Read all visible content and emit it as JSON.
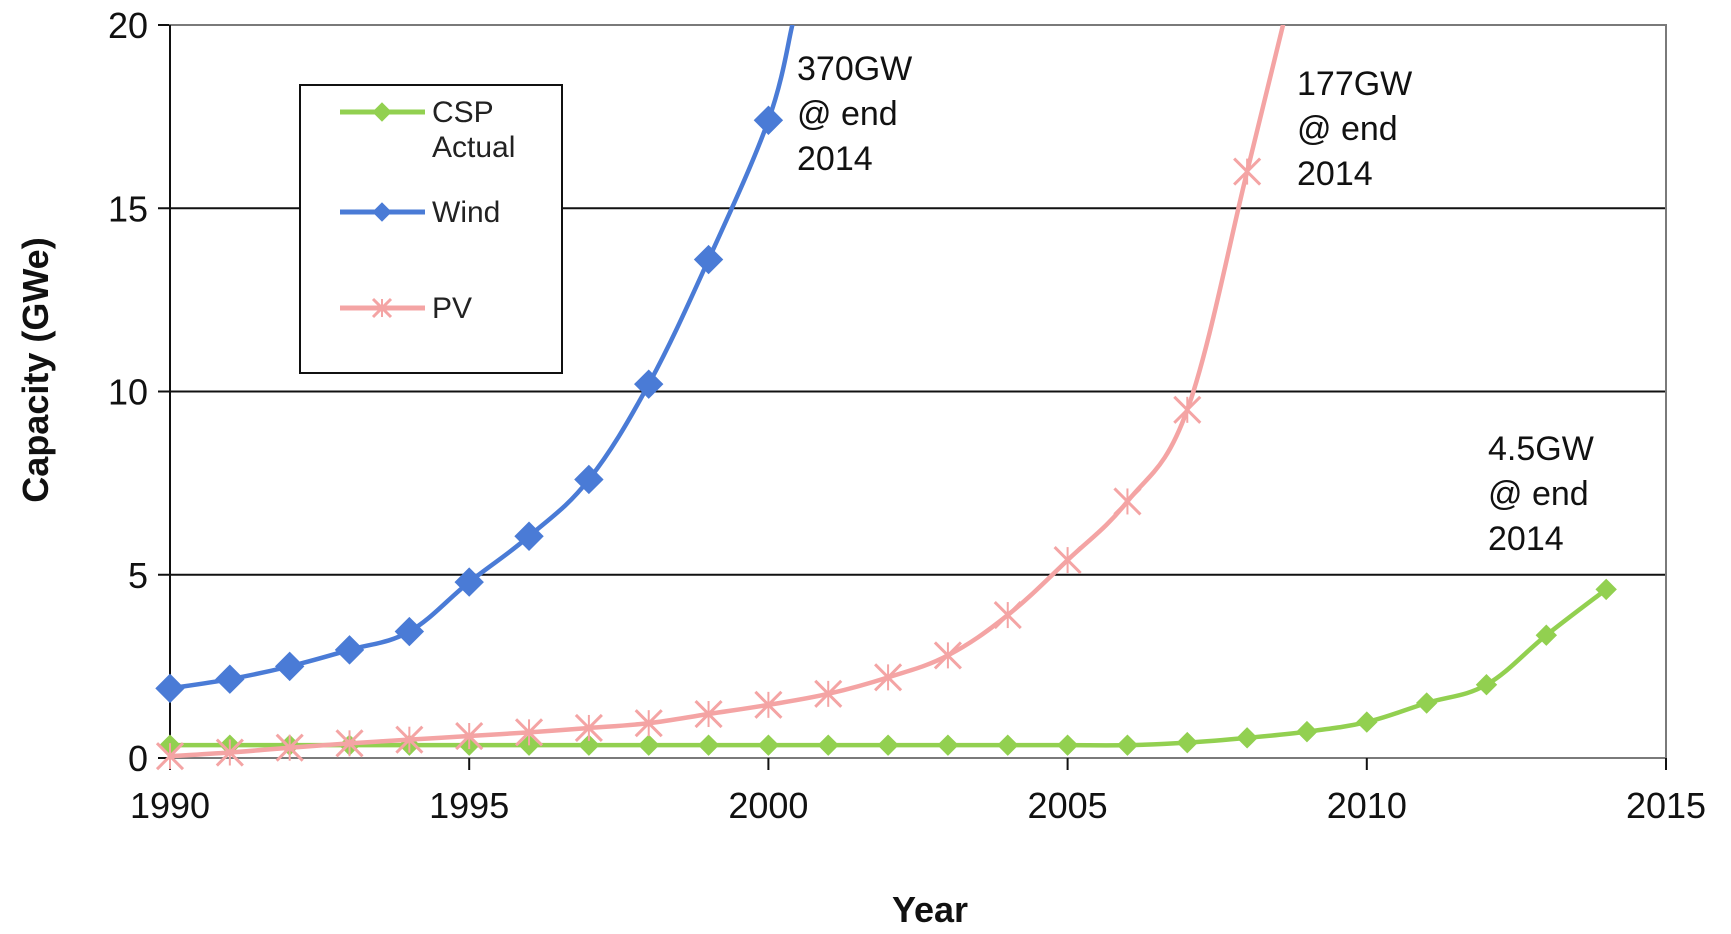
{
  "chart_data": {
    "type": "line",
    "title": "",
    "xlabel": "Year",
    "ylabel": "Capacity (GWe)",
    "xlim": [
      1990,
      2015
    ],
    "ylim": [
      0,
      20
    ],
    "x_ticks": [
      1990,
      1995,
      2000,
      2005,
      2010,
      2015
    ],
    "y_ticks": [
      0,
      5,
      10,
      15,
      20
    ],
    "grid": "horizontal",
    "legend": {
      "placement": "top-left",
      "entries": [
        {
          "series": "CSP",
          "lines": [
            "CSP",
            "Actual"
          ]
        },
        {
          "series": "Wind",
          "lines": [
            "Wind"
          ]
        },
        {
          "series": "PV",
          "lines": [
            "PV"
          ]
        }
      ]
    },
    "series": [
      {
        "name": "CSP Actual",
        "color": "#92d050",
        "marker": "diamond",
        "x": [
          1990,
          1991,
          1992,
          1993,
          1994,
          1995,
          1996,
          1997,
          1998,
          1999,
          2000,
          2001,
          2002,
          2003,
          2004,
          2005,
          2006,
          2007,
          2008,
          2009,
          2010,
          2011,
          2012,
          2013,
          2014
        ],
        "y": [
          0.35,
          0.35,
          0.35,
          0.35,
          0.35,
          0.35,
          0.35,
          0.35,
          0.35,
          0.35,
          0.35,
          0.35,
          0.35,
          0.35,
          0.35,
          0.35,
          0.35,
          0.42,
          0.55,
          0.72,
          0.98,
          1.5,
          2.0,
          3.35,
          4.6
        ]
      },
      {
        "name": "Wind",
        "color": "#4a7bd6",
        "marker": "diamond",
        "x": [
          1990,
          1991,
          1992,
          1993,
          1994,
          1995,
          1996,
          1997,
          1998,
          1999,
          2000,
          2000.4
        ],
        "y": [
          1.9,
          2.15,
          2.5,
          2.95,
          3.45,
          4.8,
          6.05,
          7.6,
          10.2,
          13.6,
          17.4,
          20.0
        ],
        "marker_count": 11
      },
      {
        "name": "PV",
        "color": "#f4a4a4",
        "marker": "x",
        "x": [
          1990,
          1991,
          1992,
          1993,
          1994,
          1995,
          1996,
          1997,
          1998,
          1999,
          2000,
          2001,
          2002,
          2003,
          2004,
          2005,
          2006,
          2007,
          2008,
          2008.6
        ],
        "y": [
          0.05,
          0.15,
          0.28,
          0.4,
          0.5,
          0.6,
          0.7,
          0.82,
          0.95,
          1.2,
          1.45,
          1.75,
          2.2,
          2.8,
          3.9,
          5.4,
          7.0,
          9.5,
          16.0,
          20.0
        ],
        "marker_count": 19
      }
    ],
    "annotations": [
      {
        "lines": [
          "370GW",
          "@ end",
          "2014"
        ]
      },
      {
        "lines": [
          "177GW",
          "@ end",
          "2014"
        ]
      },
      {
        "lines": [
          "4.5GW",
          "@ end",
          "2014"
        ]
      }
    ]
  }
}
